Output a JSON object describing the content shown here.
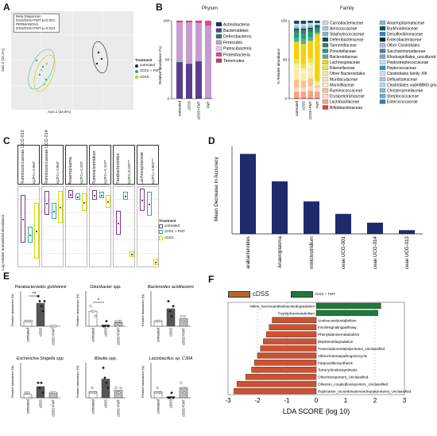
{
  "panels": {
    "A": {
      "letter": "A",
      "stats": [
        "Beta Dispersion",
        "DSS/DSS+FMT p<0.001",
        "PERMANOVA",
        "DSS/DSS+FMT p=0.024"
      ],
      "legend_title": "Treatment",
      "legend_items": [
        {
          "label": "untreated",
          "color": "#222222"
        },
        {
          "label": "cDSS + FMT",
          "color": "#2aa198"
        },
        {
          "label": "cDSS",
          "color": "#c8c800"
        }
      ],
      "xlabel": "Axis.1 [34.8%]",
      "ylabel": "Axis.2 [15.1%]"
    },
    "B": {
      "letter": "B",
      "phylum_title": "Phylum",
      "family_title": "Family",
      "ylabel": "Relative abundance (%)",
      "family_ylabel": "% Relative abundance",
      "categories": [
        "untreated",
        "cDSS",
        "cDSS+FMT",
        "FMT"
      ]
    },
    "C": {
      "letter": "C",
      "ylabel": "Log-relative normalized abundance",
      "legend_title": "Treatment",
      "legend_items": [
        {
          "label": "untreated",
          "color": "#7a3a86"
        },
        {
          "label": "cDSS + FMT",
          "color": "#2ab0a0"
        },
        {
          "label": "cDSS",
          "color": "#d8d800"
        }
      ],
      "strips": [
        {
          "name": "Ruminococcaceae UCG-013",
          "stat": "log2FC=-3.968*"
        },
        {
          "name": "Ruminococcaceae UCG-014",
          "stat": "log2FC=-3.868*"
        },
        {
          "name": "Anaeroplasma",
          "stat": "log2FC=-4.103*"
        },
        {
          "name": "Ruminiclostridium",
          "stat": "log2FC=-5.103**"
        },
        {
          "name": "Parabacteroides",
          "stat": "log2FC=5.025***"
        },
        {
          "name": "Lachnospiraceae",
          "stat": "log2FC=-3.865***"
        }
      ]
    },
    "D": {
      "letter": "D",
      "ylabel": "Mean Decrease in Accuracy"
    },
    "E": {
      "letter": "E",
      "ylabel": "Relative abundance (%)",
      "titles": [
        "Parabacteroides goldsteinii",
        "Odoribacter spp.",
        "Bacteroides acidifaciens",
        "Escherichia Shigella spp.",
        "Blautia spp.",
        "Lactobacillus sp. C30A"
      ],
      "xcats": [
        "untreated",
        "cDSS",
        "cDSS+FMT"
      ],
      "sig": [
        "**",
        "*"
      ]
    },
    "F": {
      "letter": "F",
      "legend": [
        {
          "label": "cDSS",
          "color": "#b36a2e"
        },
        {
          "label": "cDSS + FMT",
          "color": "#1f7a3a"
        }
      ],
      "xlabel": "LDA SCORE (log 10)",
      "ticks": [
        "-3",
        "-2",
        "-1",
        "0",
        "1",
        "2",
        "3"
      ]
    }
  },
  "chart_data": [
    {
      "type": "bar",
      "id": "phylum",
      "title": "Phylum",
      "ylabel": "Relative abundance (%)",
      "ylim": [
        0,
        100
      ],
      "categories": [
        "untreated",
        "cDSS",
        "cDSS+FMT",
        "FMT"
      ],
      "series": [
        {
          "name": "Actinobacteria",
          "color": "#1d3557",
          "values": [
            0.5,
            0.5,
            0.5,
            0.5
          ]
        },
        {
          "name": "Bacteroidetes",
          "color": "#5a3e8c",
          "values": [
            46,
            44,
            47,
            0
          ]
        },
        {
          "name": "Deferribacteres",
          "color": "#1b7c6c",
          "values": [
            0.5,
            0.5,
            0.5,
            0
          ]
        },
        {
          "name": "Firmicutes",
          "color": "#c59bd0",
          "values": [
            50,
            52,
            48,
            93
          ]
        },
        {
          "name": "Patescibacteria",
          "color": "#e0cce6",
          "values": [
            0.5,
            0.5,
            0.5,
            0
          ]
        },
        {
          "name": "Proteobacteria",
          "color": "#e8458b",
          "values": [
            1.5,
            1.5,
            2.5,
            6.5
          ]
        },
        {
          "name": "Tenericutes",
          "color": "#a84a64",
          "values": [
            1,
            1,
            1,
            0
          ]
        }
      ]
    },
    {
      "type": "bar",
      "id": "family",
      "title": "Family",
      "ylabel": "% Relative abundance",
      "ylim": [
        0,
        100
      ],
      "categories": [
        "untreated",
        "cDSS",
        "cDSS+FMT",
        "FMT"
      ],
      "series": [
        {
          "name": "Bifidobacteriaceae",
          "color": "#e63946",
          "values": [
            1,
            1,
            1,
            1
          ]
        },
        {
          "name": "Lactobacillaceae",
          "color": "#f4a582",
          "values": [
            8,
            8,
            9,
            8
          ]
        },
        {
          "name": "Erysipelotrichaceae",
          "color": "#fddbc7",
          "values": [
            5,
            5,
            6,
            5
          ]
        },
        {
          "name": "Ruminococcaceae",
          "color": "#f6c38f",
          "values": [
            10,
            9,
            10,
            3
          ]
        },
        {
          "name": "Muribaculaceae",
          "color": "#fde9a5",
          "values": [
            14,
            10,
            14,
            2
          ]
        },
        {
          "name": "Marinifilaceae",
          "color": "#f7f0c6",
          "values": [
            2,
            2,
            2,
            1
          ]
        },
        {
          "name": "Other Bacteroidales",
          "color": "#f0f097",
          "values": [
            5,
            4,
            4,
            1
          ]
        },
        {
          "name": "Rikenellaceae",
          "color": "#ede24c",
          "values": [
            6,
            5,
            6,
            2
          ]
        },
        {
          "name": "Lachnospiraceae",
          "color": "#f5d10b",
          "values": [
            22,
            26,
            22,
            60
          ]
        },
        {
          "name": "Bacteroidaceae",
          "color": "#4bb28a",
          "values": [
            5,
            7,
            5,
            2
          ]
        },
        {
          "name": "Prevotellaceae",
          "color": "#1f9e77",
          "values": [
            6,
            6,
            6,
            3
          ]
        },
        {
          "name": "Tannerellaceae",
          "color": "#2c7e6a",
          "values": [
            4,
            5,
            4,
            4
          ]
        },
        {
          "name": "Deferribacteraceae",
          "color": "#17444f",
          "values": [
            2,
            2,
            2,
            2
          ]
        },
        {
          "name": "Staphylococcaceae",
          "color": "#7fb8d4",
          "values": [
            2,
            2,
            2,
            1
          ]
        },
        {
          "name": "Aerococcaceae",
          "color": "#9ecae1",
          "values": [
            2,
            2,
            2,
            1
          ]
        },
        {
          "name": "Carnobacteriaceae",
          "color": "#c6dbef",
          "values": [
            2,
            2,
            2,
            1
          ]
        },
        {
          "name": "Other",
          "color": "#134f5c",
          "values": [
            4,
            4,
            3,
            3
          ]
        }
      ],
      "legend": [
        "Carnobacteriaceae",
        "Anaeroplasmataceae",
        "Aerococcaceae",
        "Burkholderiaceae",
        "Staphylococcaceae",
        "Desulfovibrionaceae",
        "Deferribacteraceae",
        "Enterobacteriaceae",
        "Tannerellaceae",
        "Other Clostridiales",
        "Prevotellaceae",
        "Saccharimonadaceae",
        "Bacteroidaceae",
        "Rhodospirillales_uncultured",
        "Lachnospiraceae",
        "Peptostreptococcaceae",
        "Rikenellaceae",
        "Peptococcaceae",
        "Other Bacteroidales",
        "Clostridiales family XIII",
        "Muribaculaceae",
        "Defluviitaleaceae",
        "Marinifilaceae",
        "Clostridiales vadinBB60 group",
        "Ruminococcaceae",
        "Christensenellaceae",
        "Erysipelotrichaceae",
        "Streptococcaceae",
        "Lactobacillaceae",
        "Enterococcaceae",
        "Bifidobacteriaceae",
        ""
      ],
      "legend_colors": [
        "#c6dbef",
        "#7fb8d4",
        "#9ecae1",
        "#134f5c",
        "#7fb8d4",
        "#2b8cbe",
        "#17444f",
        "#0c2c3e",
        "#2c7e6a",
        "#a6bddb",
        "#1f9e77",
        "#5a7a9a",
        "#4bb28a",
        "#74a9cf",
        "#f5d10b",
        "#c6dbef",
        "#ede24c",
        "#3690c0",
        "#f0f097",
        "#d0e1f2",
        "#fde9a5",
        "#9ecae1",
        "#f7f0c6",
        "#bcd6e8",
        "#f6c38f",
        "#7fb8d4",
        "#fddbc7",
        "#6baed6",
        "#f4a582",
        "#2c7fb8",
        "#e63946",
        ""
      ]
    },
    {
      "type": "bar",
      "id": "mda",
      "ylabel": "Mean Decrease in Accuracy",
      "ylim": [
        0,
        7
      ],
      "categories": [
        "Parabacteroides",
        "Anaeroplasma",
        "Ruminiclostridium",
        "Lachnospiraceae UCG-001",
        "Ruminococcaceae UCG-014",
        "Ruminococcaceae UCG-013"
      ],
      "values": [
        6.4,
        4.2,
        2.6,
        1.6,
        0.9,
        0.3
      ],
      "color": "#1f2a6b"
    },
    {
      "type": "bar",
      "id": "lda",
      "xlabel": "LDA SCORE (log 10)",
      "xlim": [
        -3,
        3
      ],
      "ticks": [
        -3,
        -2,
        -1,
        0,
        1,
        2,
        3
      ],
      "categories": [
        "Valine_leucineandisoleucinedegradation",
        "Tryptophanmetabolism",
        "Unsleucasiderstabolism",
        "Insulinsignalingpathway",
        "Phenylalaninemetabolism",
        "Bisphenoldegradation",
        "Transcriptionrelatedproteins_Unclassified",
        "Vibriocholeraepathogeniccycle",
        "Fattyacidbiosynthesis",
        "Tetracyclinebiosynthesis",
        "Othertransporters_Unclassified",
        "Otherion_coupledtransporters_Unclassified",
        "Replication_recombinationandrepairproteins_Unclassified"
      ],
      "values": [
        2.2,
        2.1,
        -1.5,
        -1.6,
        -1.7,
        -1.8,
        -1.9,
        -2.0,
        -2.1,
        -2.2,
        -2.4,
        -2.7,
        -2.8
      ],
      "series": [
        {
          "name": "cDSS",
          "color": "#b36a2e"
        },
        {
          "name": "cDSS + FMT",
          "color": "#1f7a3a"
        }
      ]
    }
  ]
}
